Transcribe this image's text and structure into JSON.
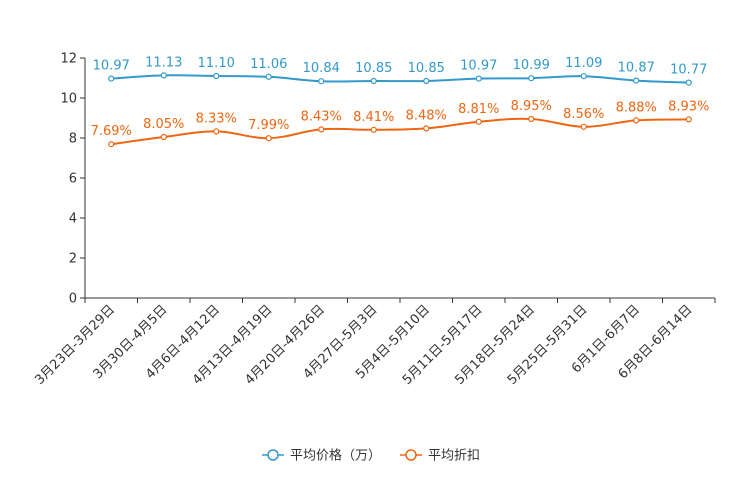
{
  "chart_data": {
    "type": "line",
    "title": "",
    "xlabel": "",
    "ylabel": "",
    "ylim": [
      0,
      12
    ],
    "yticks": [
      0,
      2,
      4,
      6,
      8,
      10,
      12
    ],
    "categories": [
      "3月23日-3月29日",
      "3月30日-4月5日",
      "4月6日-4月12日",
      "4月13日-4月19日",
      "4月20日-4月26日",
      "4月27日-5月3日",
      "5月4日-5月10日",
      "5月11日-5月17日",
      "5月18日-5月24日",
      "5月25日-5月31日",
      "6月1日-6月7日",
      "6月8日-6月14日"
    ],
    "series": [
      {
        "name": "平均价格（万）",
        "color": "#3399cc",
        "values": [
          10.97,
          11.13,
          11.1,
          11.06,
          10.84,
          10.85,
          10.85,
          10.97,
          10.99,
          11.09,
          10.87,
          10.77
        ],
        "labels": [
          "10.97",
          "11.13",
          "11.10",
          "11.06",
          "10.84",
          "10.85",
          "10.85",
          "10.97",
          "10.99",
          "11.09",
          "10.87",
          "10.77"
        ]
      },
      {
        "name": "平均折扣",
        "color": "#ee6611",
        "values": [
          7.69,
          8.05,
          8.33,
          7.99,
          8.43,
          8.41,
          8.48,
          8.81,
          8.95,
          8.56,
          8.88,
          8.93
        ],
        "labels": [
          "7.69%",
          "8.05%",
          "8.33%",
          "7.99%",
          "8.43%",
          "8.41%",
          "8.48%",
          "8.81%",
          "8.95%",
          "8.56%",
          "8.88%",
          "8.93%"
        ]
      }
    ],
    "legend_position": "bottom-center"
  }
}
